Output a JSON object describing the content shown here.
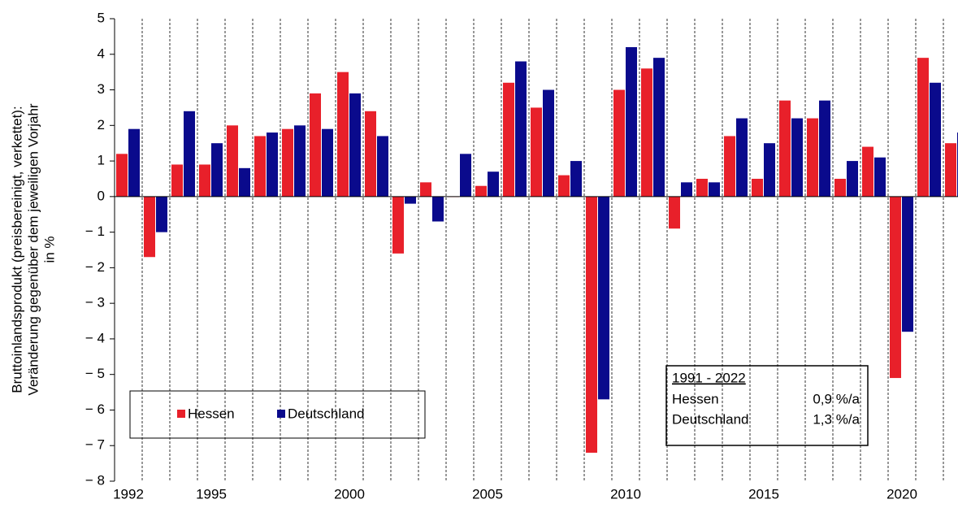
{
  "chart_data": {
    "type": "bar",
    "y_label": [
      "Bruttoinlandsprodukt (preisbereinigt, verkettet):",
      "Veränderung gegenüber dem jeweiligen Vorjahr",
      "in %"
    ],
    "categories": [
      "1992",
      null,
      null,
      "1995",
      null,
      null,
      null,
      null,
      "2000",
      null,
      null,
      null,
      null,
      "2005",
      null,
      null,
      null,
      null,
      "2010",
      null,
      null,
      null,
      null,
      "2015",
      null,
      null,
      null,
      null,
      "2020",
      null,
      null
    ],
    "series": [
      {
        "name": "Hessen",
        "color": "#e8202a",
        "values": [
          1.2,
          -1.7,
          0.9,
          0.9,
          2.0,
          1.7,
          1.9,
          2.9,
          3.5,
          2.4,
          -1.6,
          0.4,
          0.0,
          0.3,
          3.2,
          2.5,
          0.6,
          -7.2,
          3.0,
          3.6,
          -0.9,
          0.5,
          1.7,
          0.5,
          2.7,
          2.2,
          0.5,
          1.4,
          -5.1,
          3.9,
          1.5
        ]
      },
      {
        "name": "Deutschland",
        "color": "#0a0a8c",
        "values": [
          1.9,
          -1.0,
          2.4,
          1.5,
          0.8,
          1.8,
          2.0,
          1.9,
          2.9,
          1.7,
          -0.2,
          -0.7,
          1.2,
          0.7,
          3.8,
          3.0,
          1.0,
          -5.7,
          4.2,
          3.9,
          0.4,
          0.4,
          2.2,
          1.5,
          2.2,
          2.7,
          1.0,
          1.1,
          -3.8,
          3.2,
          1.8
        ]
      }
    ],
    "ylim": [
      -8,
      5
    ],
    "yticks": [
      {
        "value": -8,
        "label": "− 8"
      },
      {
        "value": -7,
        "label": "− 7"
      },
      {
        "value": -6,
        "label": "− 6"
      },
      {
        "value": -5,
        "label": "− 5"
      },
      {
        "value": -4,
        "label": "− 4"
      },
      {
        "value": -3,
        "label": "− 3"
      },
      {
        "value": -2,
        "label": "− 2"
      },
      {
        "value": -1,
        "label": "− 1"
      },
      0,
      1,
      2,
      3,
      4,
      5
    ],
    "annotation": {
      "title": "1991 - 2022",
      "rows": [
        [
          "Hessen",
          "0,9 %/a"
        ],
        [
          "Deutschland",
          "1,3 %/a"
        ]
      ]
    }
  }
}
